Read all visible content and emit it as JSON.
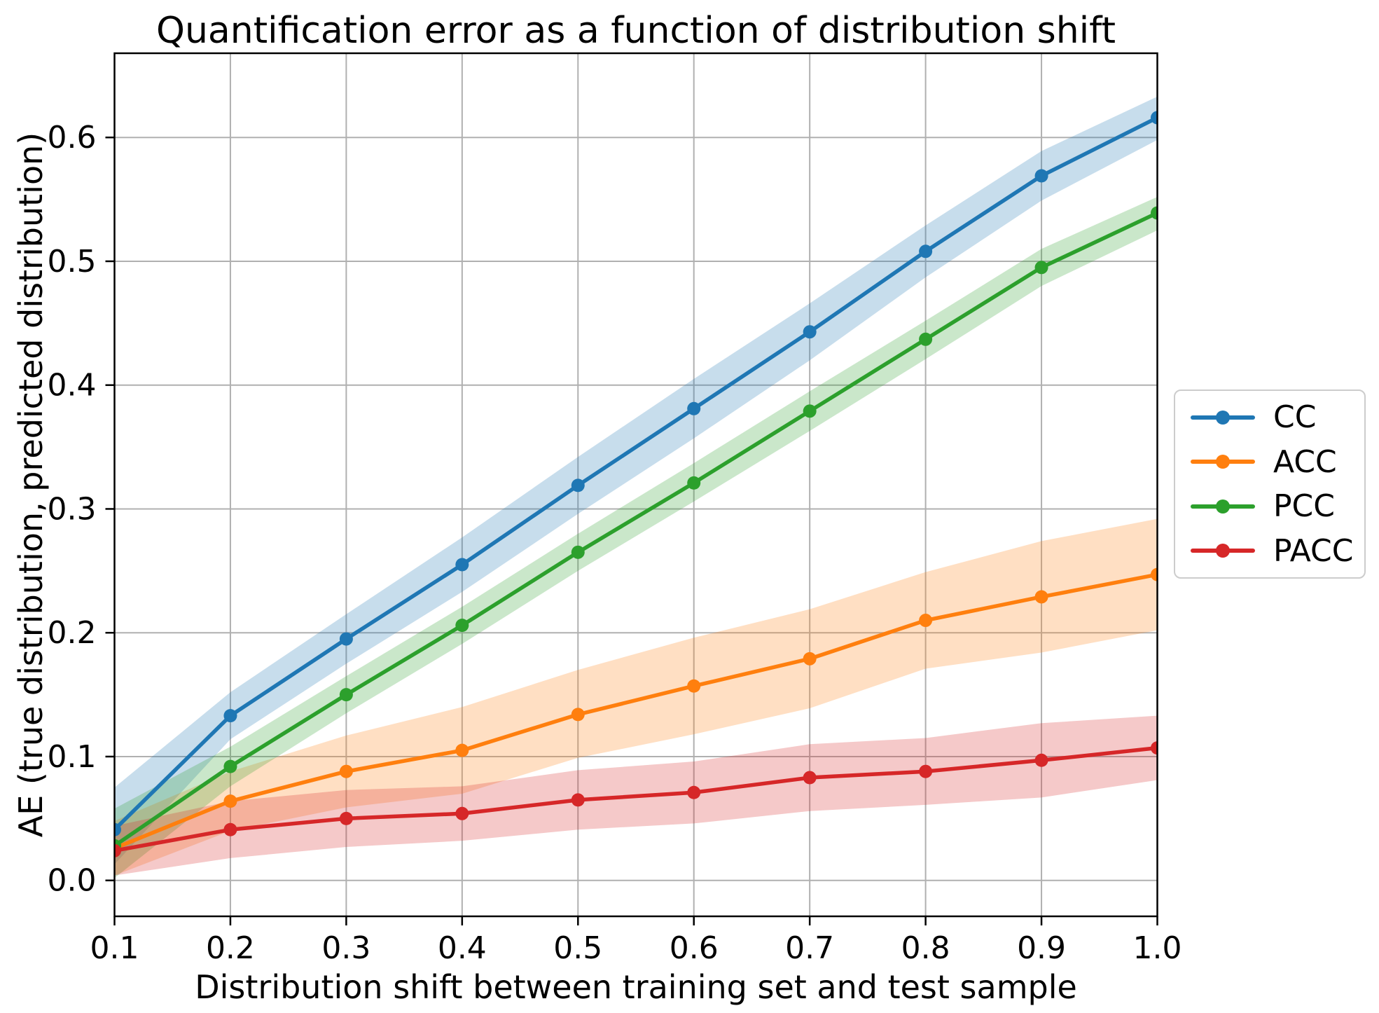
{
  "chart_data": {
    "type": "line",
    "title": "Quantification error as a function of distribution shift",
    "xlabel": "Distribution shift between training set and test sample",
    "ylabel": "AE (true distribution, predicted distribution)",
    "x": [
      0.1,
      0.2,
      0.3,
      0.4,
      0.5,
      0.6,
      0.7,
      0.8,
      0.9,
      1.0
    ],
    "xlim": [
      0.1,
      1.0
    ],
    "ylim": [
      -0.029,
      0.668
    ],
    "xticks": [
      {
        "v": 0.1,
        "label": "0.1"
      },
      {
        "v": 0.2,
        "label": "0.2"
      },
      {
        "v": 0.3,
        "label": "0.3"
      },
      {
        "v": 0.4,
        "label": "0.4"
      },
      {
        "v": 0.5,
        "label": "0.5"
      },
      {
        "v": 0.6,
        "label": "0.6"
      },
      {
        "v": 0.7,
        "label": "0.7"
      },
      {
        "v": 0.8,
        "label": "0.8"
      },
      {
        "v": 0.9,
        "label": "0.9"
      },
      {
        "v": 1.0,
        "label": "1.0"
      }
    ],
    "yticks": [
      {
        "v": 0.0,
        "label": "0.0"
      },
      {
        "v": 0.1,
        "label": "0.1"
      },
      {
        "v": 0.2,
        "label": "0.2"
      },
      {
        "v": 0.3,
        "label": "0.3"
      },
      {
        "v": 0.4,
        "label": "0.4"
      },
      {
        "v": 0.5,
        "label": "0.5"
      },
      {
        "v": 0.6,
        "label": "0.6"
      }
    ],
    "grid": true,
    "grid_color": "#b0b0b0",
    "band_alpha": 0.25,
    "legend_position": "outside-right",
    "series": [
      {
        "name": "CC",
        "color": "#1f77b4",
        "values": [
          0.041,
          0.133,
          0.195,
          0.255,
          0.319,
          0.381,
          0.443,
          0.508,
          0.569,
          0.616
        ],
        "band_lower": [
          0.013,
          0.114,
          0.175,
          0.233,
          0.296,
          0.357,
          0.42,
          0.487,
          0.549,
          0.598
        ],
        "band_upper": [
          0.075,
          0.152,
          0.215,
          0.277,
          0.342,
          0.405,
          0.466,
          0.529,
          0.589,
          0.633
        ]
      },
      {
        "name": "ACC",
        "color": "#ff7f0e",
        "values": [
          0.026,
          0.064,
          0.088,
          0.105,
          0.134,
          0.157,
          0.179,
          0.21,
          0.229,
          0.247
        ],
        "band_lower": [
          0.004,
          0.04,
          0.059,
          0.07,
          0.099,
          0.118,
          0.139,
          0.171,
          0.184,
          0.202
        ],
        "band_upper": [
          0.048,
          0.088,
          0.117,
          0.14,
          0.17,
          0.196,
          0.219,
          0.249,
          0.274,
          0.292
        ]
      },
      {
        "name": "PCC",
        "color": "#2ca02c",
        "values": [
          0.028,
          0.092,
          0.15,
          0.206,
          0.265,
          0.321,
          0.379,
          0.437,
          0.495,
          0.539
        ],
        "band_lower": [
          0.002,
          0.076,
          0.135,
          0.191,
          0.25,
          0.306,
          0.363,
          0.421,
          0.48,
          0.525
        ],
        "band_upper": [
          0.058,
          0.108,
          0.165,
          0.221,
          0.28,
          0.337,
          0.395,
          0.452,
          0.51,
          0.552
        ]
      },
      {
        "name": "PACC",
        "color": "#d62728",
        "values": [
          0.024,
          0.041,
          0.05,
          0.054,
          0.065,
          0.071,
          0.083,
          0.088,
          0.097,
          0.107
        ],
        "band_lower": [
          0.004,
          0.018,
          0.027,
          0.032,
          0.041,
          0.046,
          0.056,
          0.061,
          0.067,
          0.081
        ],
        "band_upper": [
          0.044,
          0.064,
          0.073,
          0.076,
          0.089,
          0.096,
          0.11,
          0.115,
          0.127,
          0.133
        ]
      }
    ]
  }
}
